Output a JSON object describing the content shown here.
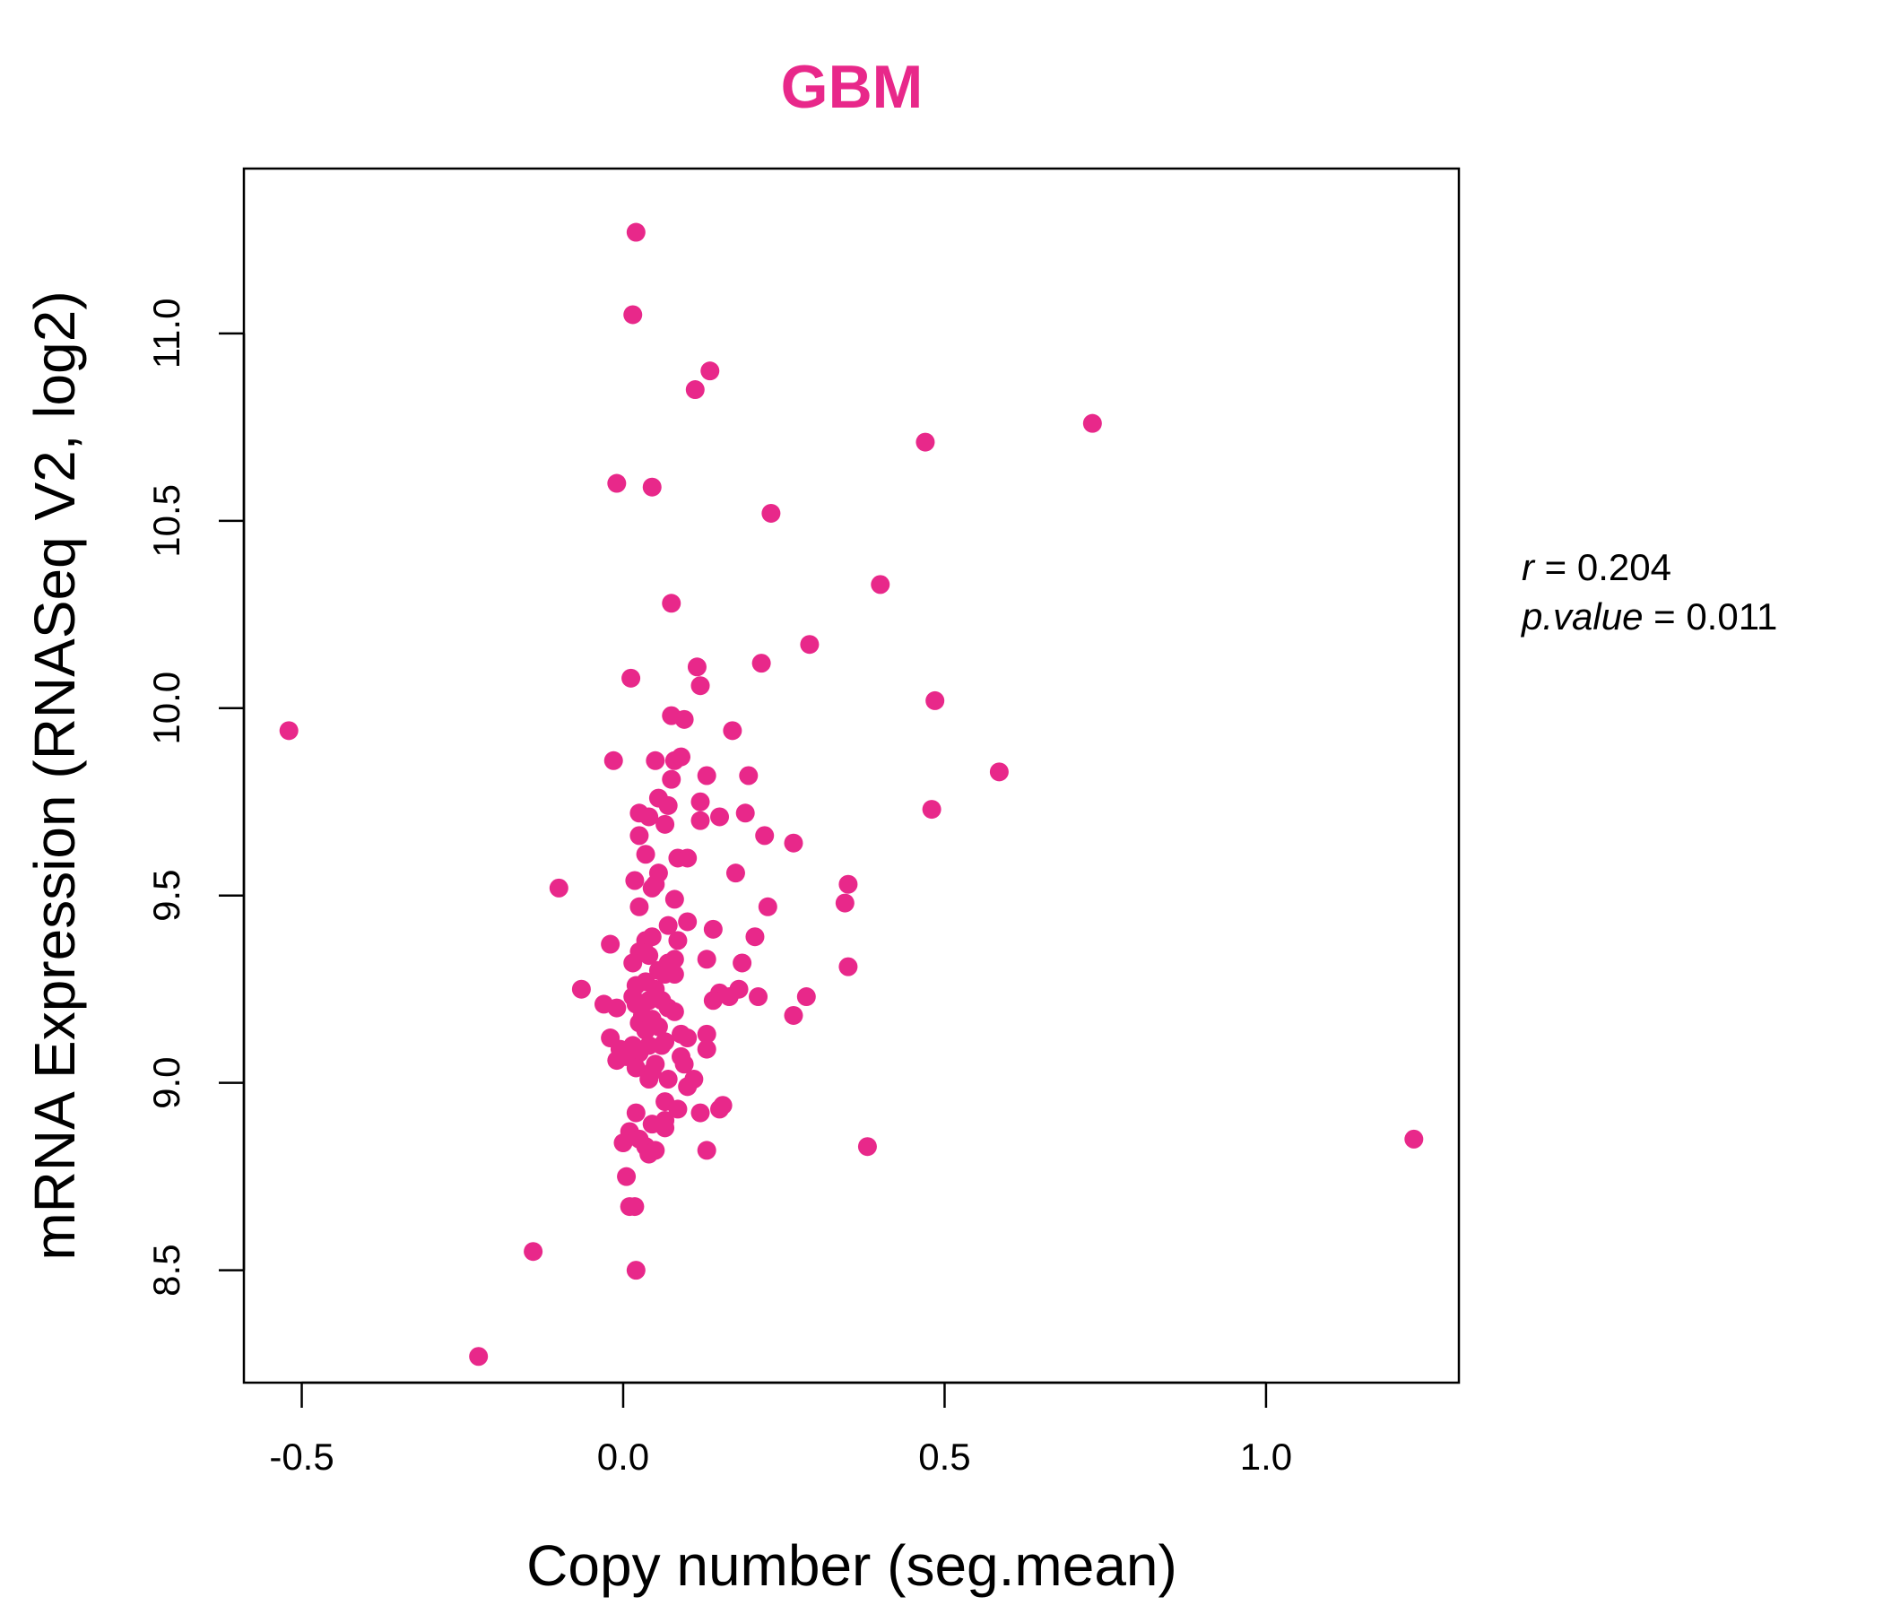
{
  "colors": {
    "point": "#E8288A",
    "title": "#E8288A",
    "axis": "#000000"
  },
  "stats": {
    "r_label": "r",
    "r_value": "0.204",
    "p_label": "p.value",
    "p_value": "0.011"
  },
  "chart_data": {
    "type": "scatter",
    "title": "GBM",
    "xlabel": "Copy number (seg.mean)",
    "ylabel": "mRNA Expression (RNASeq V2, log2)",
    "xlim": [
      -0.59,
      1.3
    ],
    "ylim": [
      8.2,
      11.44
    ],
    "xticks": [
      -0.5,
      0.0,
      0.5,
      1.0
    ],
    "xtick_labels": [
      "-0.5",
      "0.0",
      "0.5",
      "1.0"
    ],
    "yticks": [
      8.5,
      9.0,
      9.5,
      10.0,
      10.5,
      11.0
    ],
    "ytick_labels": [
      "8.5",
      "9.0",
      "9.5",
      "10.0",
      "10.5",
      "11.0"
    ],
    "grid": false,
    "points": [
      [
        0.02,
        11.27
      ],
      [
        0.015,
        11.05
      ],
      [
        0.135,
        10.9
      ],
      [
        0.112,
        10.85
      ],
      [
        0.73,
        10.76
      ],
      [
        0.47,
        10.71
      ],
      [
        -0.01,
        10.6
      ],
      [
        0.045,
        10.59
      ],
      [
        0.23,
        10.52
      ],
      [
        0.4,
        10.33
      ],
      [
        0.075,
        10.28
      ],
      [
        0.29,
        10.17
      ],
      [
        0.115,
        10.11
      ],
      [
        0.215,
        10.12
      ],
      [
        0.012,
        10.08
      ],
      [
        0.12,
        10.06
      ],
      [
        0.485,
        10.02
      ],
      [
        0.075,
        9.98
      ],
      [
        0.095,
        9.97
      ],
      [
        -0.52,
        9.94
      ],
      [
        0.17,
        9.94
      ],
      [
        -0.015,
        9.86
      ],
      [
        0.05,
        9.86
      ],
      [
        0.08,
        9.86
      ],
      [
        0.09,
        9.87
      ],
      [
        0.585,
        9.83
      ],
      [
        0.075,
        9.81
      ],
      [
        0.13,
        9.82
      ],
      [
        0.195,
        9.82
      ],
      [
        0.055,
        9.76
      ],
      [
        0.12,
        9.75
      ],
      [
        0.025,
        9.72
      ],
      [
        0.04,
        9.71
      ],
      [
        0.07,
        9.74
      ],
      [
        0.12,
        9.7
      ],
      [
        0.15,
        9.71
      ],
      [
        0.19,
        9.72
      ],
      [
        0.48,
        9.73
      ],
      [
        0.065,
        9.69
      ],
      [
        0.025,
        9.66
      ],
      [
        0.22,
        9.66
      ],
      [
        0.265,
        9.64
      ],
      [
        0.035,
        9.61
      ],
      [
        0.085,
        9.6
      ],
      [
        0.1,
        9.6
      ],
      [
        0.175,
        9.56
      ],
      [
        0.055,
        9.56
      ],
      [
        0.05,
        9.53
      ],
      [
        0.018,
        9.54
      ],
      [
        0.045,
        9.52
      ],
      [
        -0.1,
        9.52
      ],
      [
        0.35,
        9.53
      ],
      [
        0.08,
        9.49
      ],
      [
        0.025,
        9.47
      ],
      [
        0.225,
        9.47
      ],
      [
        0.345,
        9.48
      ],
      [
        0.07,
        9.42
      ],
      [
        0.1,
        9.43
      ],
      [
        0.14,
        9.41
      ],
      [
        0.045,
        9.39
      ],
      [
        0.035,
        9.38
      ],
      [
        0.085,
        9.38
      ],
      [
        0.205,
        9.39
      ],
      [
        -0.02,
        9.37
      ],
      [
        0.025,
        9.35
      ],
      [
        0.04,
        9.34
      ],
      [
        0.07,
        9.32
      ],
      [
        0.08,
        9.33
      ],
      [
        0.13,
        9.33
      ],
      [
        0.185,
        9.32
      ],
      [
        0.35,
        9.31
      ],
      [
        0.015,
        9.32
      ],
      [
        0.055,
        9.3
      ],
      [
        0.065,
        9.29
      ],
      [
        0.08,
        9.29
      ],
      [
        0.035,
        9.27
      ],
      [
        0.02,
        9.26
      ],
      [
        -0.065,
        9.25
      ],
      [
        0.05,
        9.25
      ],
      [
        0.15,
        9.24
      ],
      [
        0.18,
        9.25
      ],
      [
        0.165,
        9.23
      ],
      [
        0.21,
        9.23
      ],
      [
        0.285,
        9.23
      ],
      [
        0.015,
        9.23
      ],
      [
        0.04,
        9.22
      ],
      [
        0.14,
        9.22
      ],
      [
        0.06,
        9.22
      ],
      [
        0.02,
        9.21
      ],
      [
        -0.01,
        9.2
      ],
      [
        -0.03,
        9.21
      ],
      [
        0.07,
        9.2
      ],
      [
        0.08,
        9.19
      ],
      [
        0.03,
        9.18
      ],
      [
        0.045,
        9.17
      ],
      [
        0.265,
        9.18
      ],
      [
        0.025,
        9.16
      ],
      [
        0.055,
        9.15
      ],
      [
        0.035,
        9.14
      ],
      [
        0.09,
        9.13
      ],
      [
        0.1,
        9.12
      ],
      [
        0.13,
        9.13
      ],
      [
        0.065,
        9.11
      ],
      [
        -0.02,
        9.12
      ],
      [
        0.015,
        9.1
      ],
      [
        0.04,
        9.1
      ],
      [
        0.06,
        9.1
      ],
      [
        -0.005,
        9.09
      ],
      [
        0.025,
        9.08
      ],
      [
        0.13,
        9.09
      ],
      [
        0.09,
        9.07
      ],
      [
        0.005,
        9.07
      ],
      [
        -0.01,
        9.06
      ],
      [
        0.05,
        9.05
      ],
      [
        0.095,
        9.05
      ],
      [
        0.02,
        9.04
      ],
      [
        0.045,
        9.03
      ],
      [
        0.07,
        9.01
      ],
      [
        0.04,
        9.01
      ],
      [
        0.11,
        9.01
      ],
      [
        0.1,
        8.99
      ],
      [
        0.065,
        8.95
      ],
      [
        0.155,
        8.94
      ],
      [
        0.15,
        8.93
      ],
      [
        0.085,
        8.93
      ],
      [
        0.02,
        8.92
      ],
      [
        0.12,
        8.92
      ],
      [
        0.065,
        8.9
      ],
      [
        0.045,
        8.89
      ],
      [
        0.065,
        8.88
      ],
      [
        0.01,
        8.87
      ],
      [
        0.025,
        8.85
      ],
      [
        0.0,
        8.84
      ],
      [
        0.035,
        8.83
      ],
      [
        0.38,
        8.83
      ],
      [
        1.23,
        8.85
      ],
      [
        0.05,
        8.82
      ],
      [
        0.04,
        8.81
      ],
      [
        0.13,
        8.82
      ],
      [
        0.005,
        8.75
      ],
      [
        0.01,
        8.67
      ],
      [
        0.018,
        8.67
      ],
      [
        -0.14,
        8.55
      ],
      [
        0.02,
        8.5
      ],
      [
        -0.225,
        8.27
      ]
    ]
  }
}
